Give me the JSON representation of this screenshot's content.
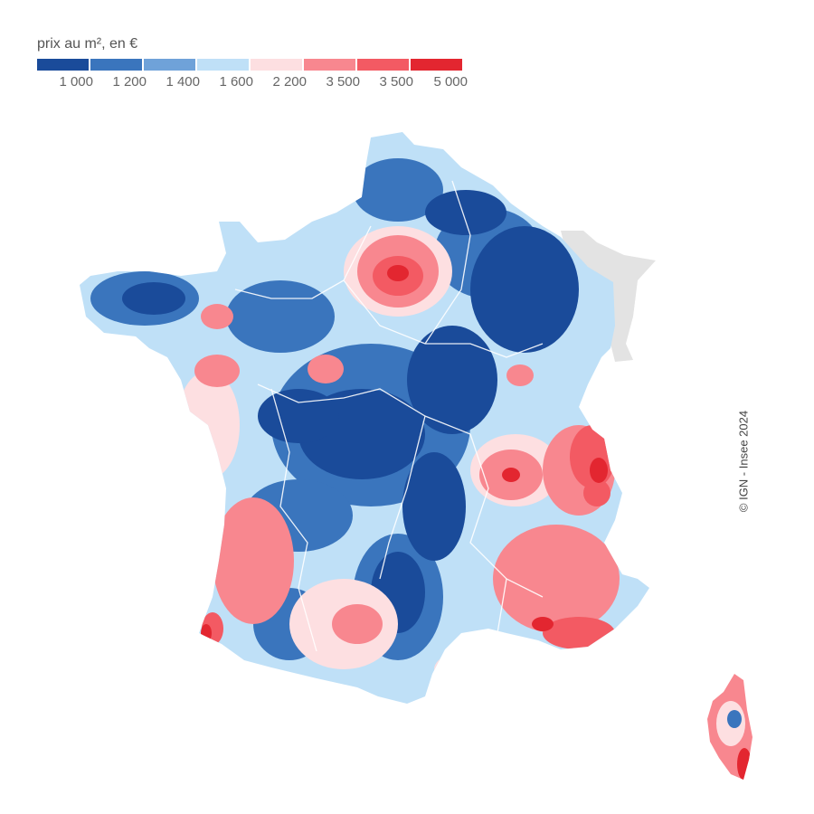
{
  "legend": {
    "title": "prix au m², en €",
    "colors": [
      "#1a4b9a",
      "#3a75bd",
      "#6fa2d9",
      "#bfe0f7",
      "#fddfe1",
      "#f8878f",
      "#f35a63",
      "#e32630"
    ],
    "tick_labels": [
      "1 000",
      "1 200",
      "1 400",
      "1 600",
      "2 200",
      "3 500",
      "3 500",
      "5 000"
    ]
  },
  "map": {
    "no_data_color": "#e3e3e3",
    "border_color": "#ffffff"
  },
  "credit": "© IGN - Insee 2024"
}
